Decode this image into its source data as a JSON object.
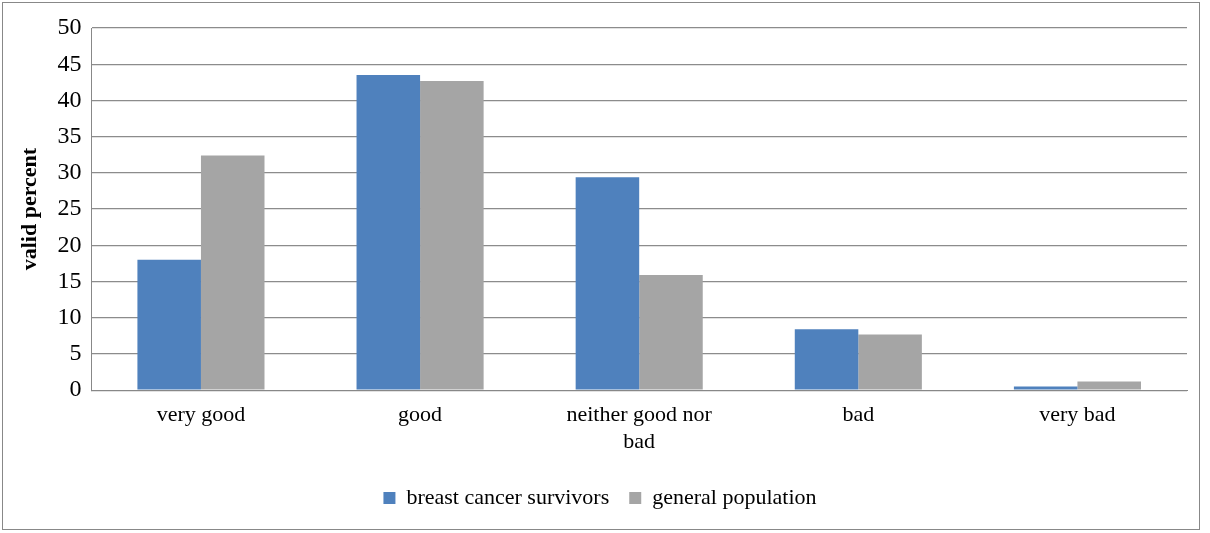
{
  "chart_data": {
    "type": "bar",
    "ylabel": "valid percent",
    "categories": [
      "very good",
      "good",
      "neither good nor bad",
      "bad",
      "very bad"
    ],
    "series": [
      {
        "name": "breast cancer survivors",
        "color": "#4f81bd",
        "values": [
          18.0,
          43.5,
          29.4,
          8.4,
          0.5
        ]
      },
      {
        "name": "general population",
        "color": "#a5a5a5",
        "values": [
          32.4,
          42.7,
          15.9,
          7.7,
          1.2
        ]
      }
    ],
    "ylim": [
      0,
      50
    ],
    "yticks": [
      0,
      5,
      10,
      15,
      20,
      25,
      30,
      35,
      40,
      45,
      50
    ],
    "grid": "y",
    "legend": "bottom"
  }
}
